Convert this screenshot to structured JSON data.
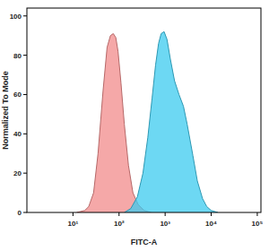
{
  "chart_data": {
    "type": "area",
    "x_label": "FITC-A",
    "y_label": "Normalized To Mode",
    "log": "x",
    "xlim": [
      1,
      120000
    ],
    "xticks": [
      {
        "value": 10,
        "label": "10¹"
      },
      {
        "value": 100,
        "label": "10²"
      },
      {
        "value": 1000,
        "label": "10³"
      },
      {
        "value": 10000,
        "label": "10⁴"
      },
      {
        "value": 100000,
        "label": "10⁵"
      }
    ],
    "ylim": [
      0,
      104
    ],
    "yticks": [
      0,
      20,
      40,
      60,
      80,
      100
    ],
    "series": [
      {
        "color": "#f28b8b",
        "x": [
          12,
          18,
          22,
          28,
          35,
          45,
          55,
          65,
          75,
          85,
          95,
          110,
          130,
          160,
          200,
          260,
          350,
          500
        ],
        "values": [
          0,
          1,
          3,
          10,
          30,
          62,
          84,
          90,
          91,
          89,
          82,
          66,
          45,
          24,
          10,
          4,
          1,
          0
        ]
      },
      {
        "color": "#3ccbef",
        "x": [
          130,
          180,
          250,
          330,
          420,
          520,
          620,
          720,
          820,
          950,
          1100,
          1300,
          1600,
          2000,
          2500,
          3000,
          4000,
          5000,
          6500,
          8000,
          10000,
          14000
        ],
        "values": [
          0,
          2,
          8,
          20,
          38,
          58,
          75,
          86,
          91,
          92,
          88,
          78,
          67,
          60,
          54,
          45,
          29,
          16,
          7,
          3,
          1,
          0
        ]
      }
    ]
  }
}
